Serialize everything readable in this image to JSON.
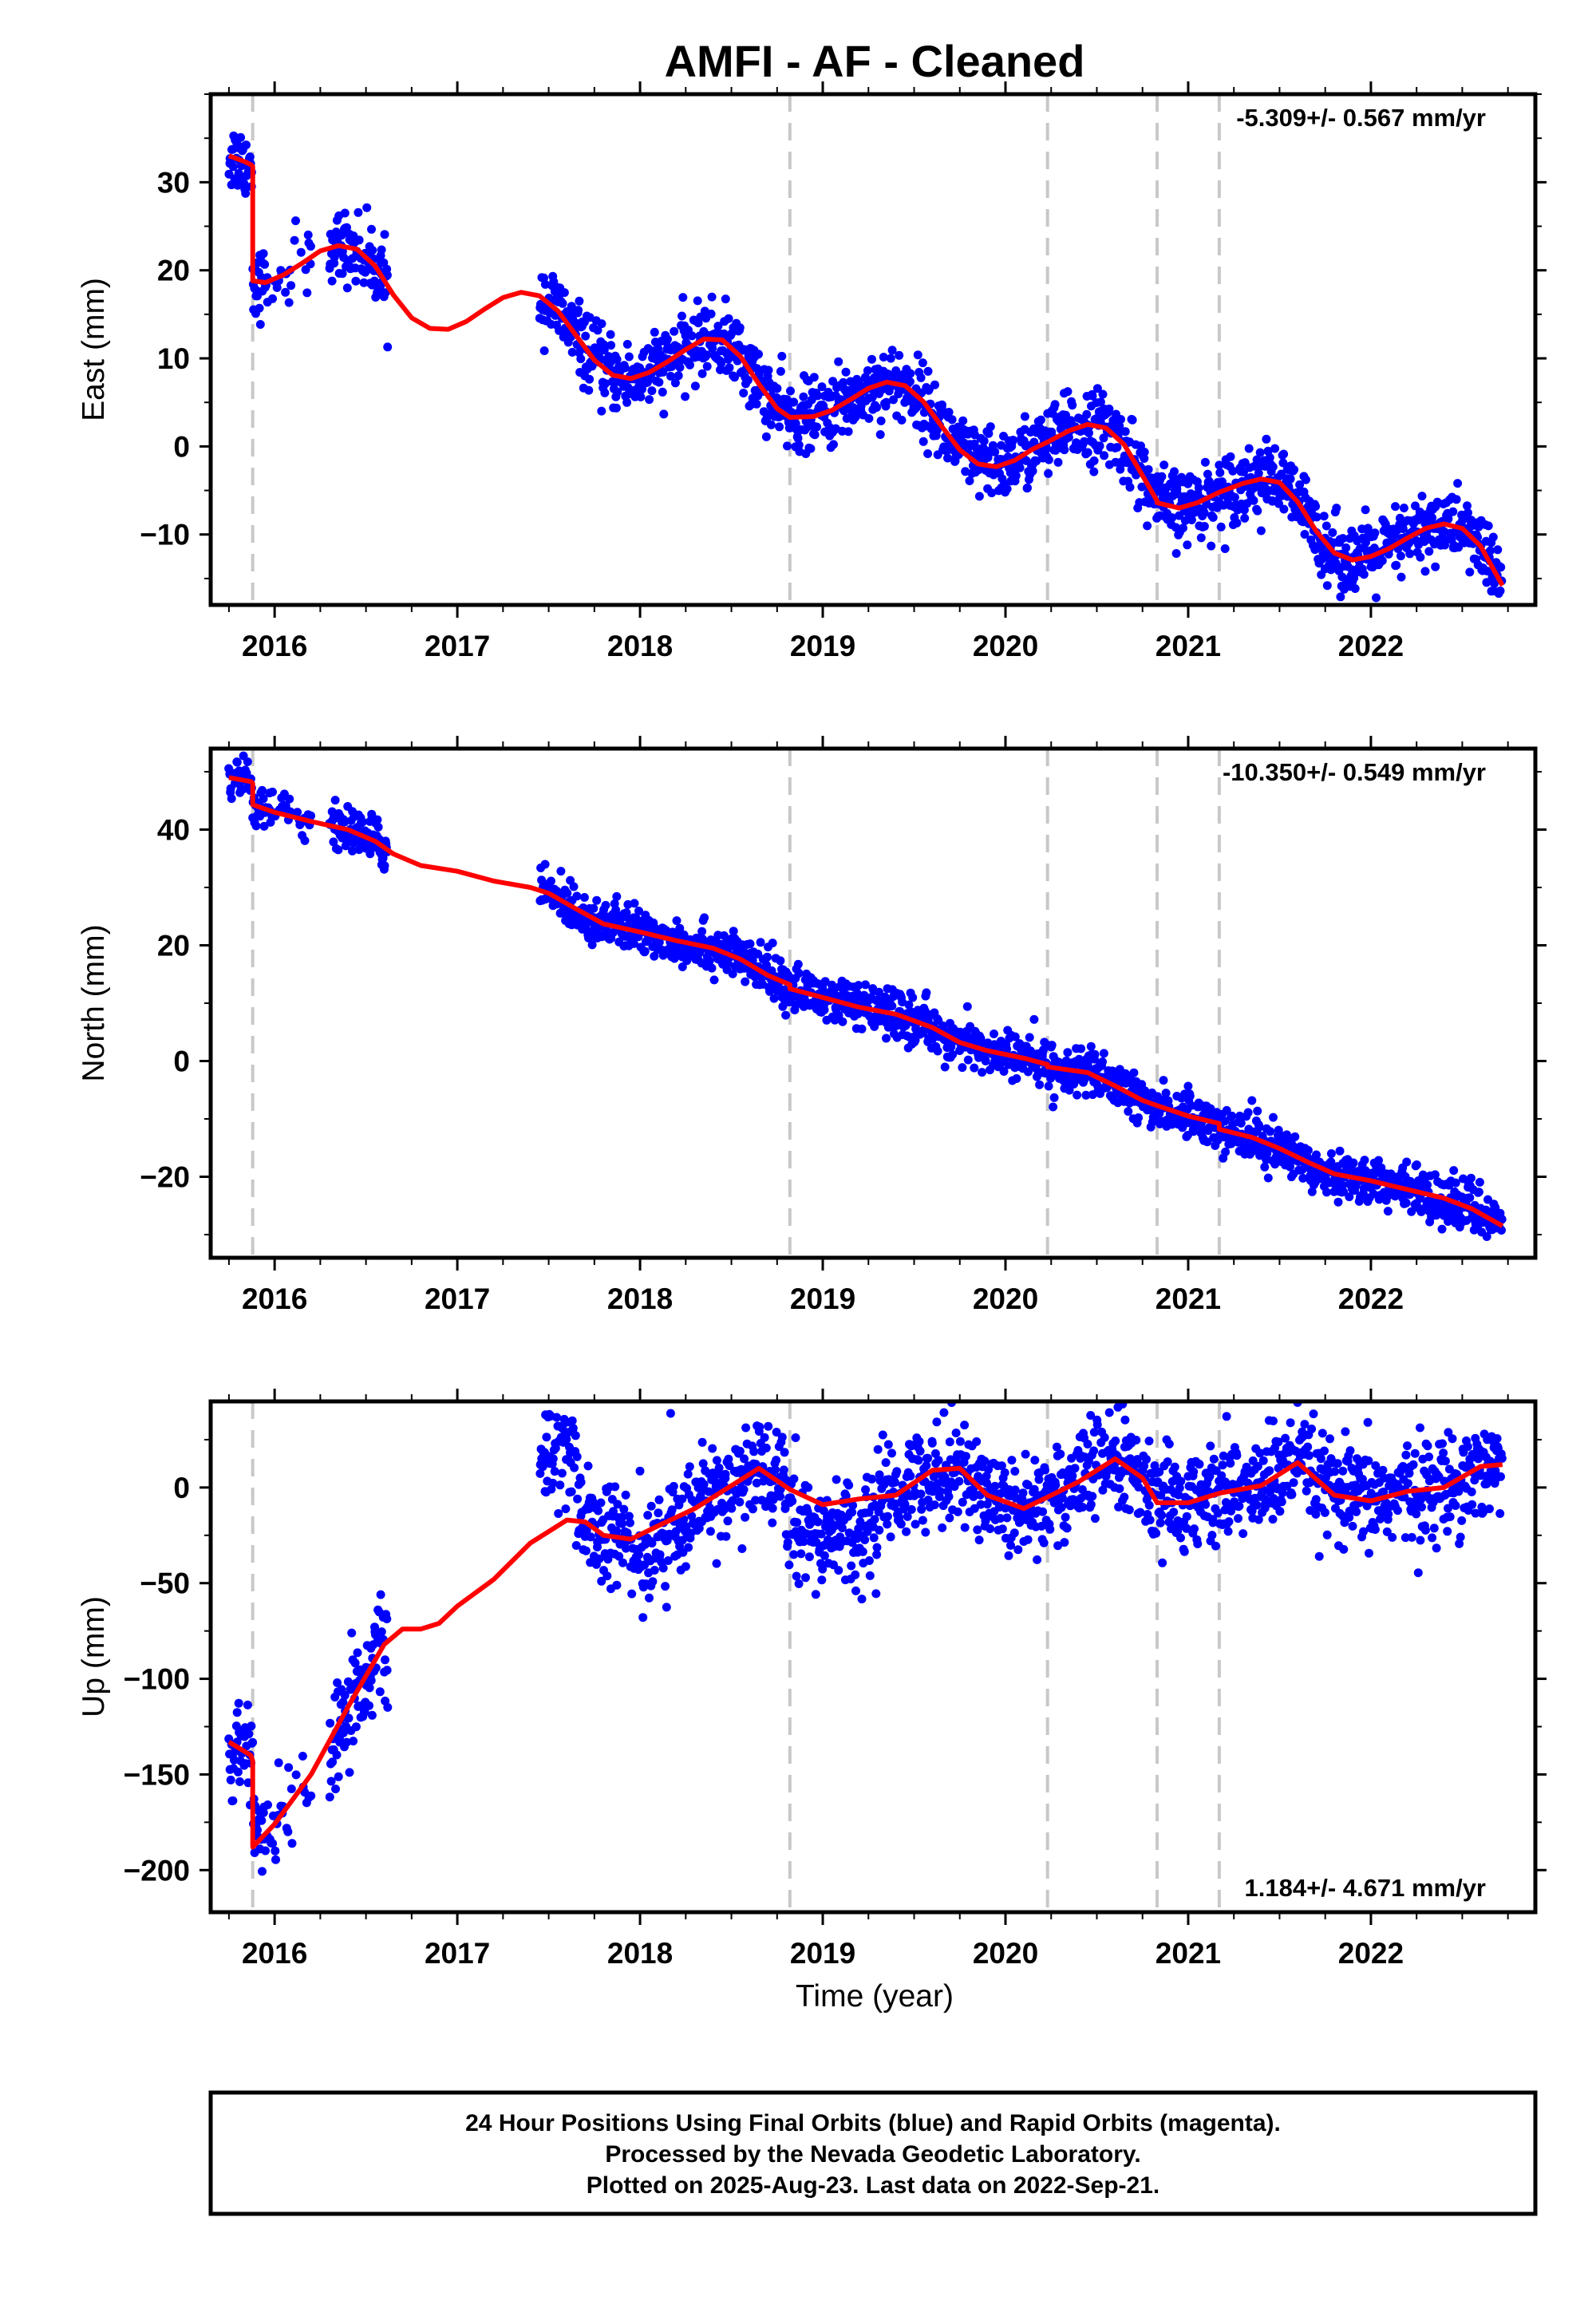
{
  "chart_data": {
    "type": "scatter",
    "title": "AMFI  - AF - Cleaned",
    "xlabel": "Time (year)",
    "x_tick_labels": [
      "2016",
      "2017",
      "2018",
      "2019",
      "2020",
      "2021",
      "2022"
    ],
    "x_ticks": [
      2016,
      2017,
      2018,
      2019,
      2020,
      2021,
      2022
    ],
    "xlim": [
      2015.65,
      2022.9
    ],
    "grid": false,
    "colors": {
      "points": "#0000ff",
      "model": "#ff0000",
      "breaks": "#c8c8c8",
      "frame": "#000000"
    },
    "equipment_breaks": [
      2015.88,
      2018.82,
      2020.23,
      2020.83,
      2021.17
    ],
    "panels": [
      {
        "id": "east",
        "ylabel": "East (mm)",
        "ylim": [
          -18,
          40
        ],
        "y_ticks": [
          30,
          20,
          10,
          0,
          -10
        ],
        "y_tick_labels": [
          "30",
          "20",
          "10",
          "0",
          "−10"
        ],
        "rate_label": "-5.309+/- 0.567 mm/yr",
        "rate_position": "top-right",
        "model": {
          "x": [
            2015.75,
            2015.79,
            2015.84,
            2015.87,
            2015.88,
            2015.88,
            2015.95,
            2016.05,
            2016.15,
            2016.25,
            2016.35,
            2016.45,
            2016.55,
            2016.65,
            2016.75,
            2016.85,
            2016.95,
            2017.05,
            2017.15,
            2017.25,
            2017.35,
            2017.45,
            2017.55,
            2017.65,
            2017.75,
            2017.85,
            2017.95,
            2018.05,
            2018.15,
            2018.25,
            2018.35,
            2018.45,
            2018.55,
            2018.65,
            2018.75,
            2018.82,
            2018.82,
            2018.95,
            2019.05,
            2019.15,
            2019.25,
            2019.35,
            2019.45,
            2019.55,
            2019.65,
            2019.75,
            2019.85,
            2019.95,
            2020.05,
            2020.15,
            2020.23,
            2020.23,
            2020.35,
            2020.45,
            2020.55,
            2020.65,
            2020.75,
            2020.83,
            2020.83,
            2020.95,
            2021.05,
            2021.17,
            2021.17,
            2021.3,
            2021.4,
            2021.5,
            2021.6,
            2021.7,
            2021.8,
            2021.9,
            2022.0,
            2022.1,
            2022.2,
            2022.3,
            2022.4,
            2022.5,
            2022.6,
            2022.72
          ],
          "y": [
            33,
            32.7,
            32.3,
            32,
            31.8,
            18.8,
            18.6,
            19.5,
            20.8,
            22.2,
            22.8,
            22.4,
            20.5,
            17.2,
            14.6,
            13.4,
            13.3,
            14.2,
            15.6,
            16.9,
            17.5,
            17.1,
            15.4,
            12.6,
            9.8,
            8.1,
            7.7,
            8.4,
            9.6,
            11,
            12.2,
            12.1,
            10.2,
            7.1,
            4.3,
            3.3,
            3.3,
            3.4,
            4.1,
            5.3,
            6.6,
            7.3,
            6.9,
            5.1,
            2.3,
            -0.4,
            -2,
            -2.3,
            -1.6,
            -0.3,
            0.5,
            0.5,
            1.8,
            2.5,
            2.1,
            0.2,
            -3.3,
            -6.2,
            -6.4,
            -7,
            -6.4,
            -5.2,
            -5.2,
            -4.2,
            -3.7,
            -4.1,
            -6.3,
            -9.6,
            -12.1,
            -12.9,
            -12.5,
            -11.6,
            -10.4,
            -9.3,
            -8.8,
            -9.3,
            -11.3,
            -15.8
          ]
        },
        "series_points_count": 2100
      },
      {
        "id": "north",
        "ylabel": "North (mm)",
        "ylim": [
          -34,
          54
        ],
        "y_ticks": [
          40,
          20,
          0,
          -20
        ],
        "y_tick_labels": [
          "40",
          "20",
          "0",
          "−20"
        ],
        "rate_label": "-10.350+/- 0.549 mm/yr",
        "rate_position": "top-right",
        "model": {
          "x": [
            2015.75,
            2015.87,
            2015.88,
            2015.88,
            2016.0,
            2016.2,
            2016.4,
            2016.55,
            2016.65,
            2016.8,
            2017.0,
            2017.2,
            2017.4,
            2017.5,
            2017.65,
            2017.8,
            2018.0,
            2018.2,
            2018.4,
            2018.55,
            2018.7,
            2018.82,
            2018.82,
            2019.0,
            2019.2,
            2019.4,
            2019.6,
            2019.75,
            2019.9,
            2020.1,
            2020.23,
            2020.23,
            2020.45,
            2020.6,
            2020.75,
            2020.83,
            2020.83,
            2021.0,
            2021.17,
            2021.17,
            2021.35,
            2021.5,
            2021.65,
            2021.8,
            2022.0,
            2022.2,
            2022.4,
            2022.55,
            2022.72
          ],
          "y": [
            49,
            48.3,
            48,
            44.3,
            43,
            41.4,
            40,
            38,
            35.8,
            33.8,
            32.8,
            31.1,
            30,
            29,
            26.3,
            23.7,
            22.3,
            20.8,
            19.5,
            17.6,
            14.8,
            13.2,
            12.5,
            11,
            9.3,
            8.1,
            5.8,
            3.2,
            1.8,
            0.5,
            -0.6,
            -1,
            -2,
            -4.3,
            -6.8,
            -7.7,
            -7.7,
            -9.5,
            -10.8,
            -11.8,
            -13.2,
            -15.1,
            -17.4,
            -19.5,
            -20.7,
            -22.2,
            -23.7,
            -25.5,
            -28.5
          ]
        },
        "series_points_count": 2100
      },
      {
        "id": "up",
        "ylabel": "Up (mm)",
        "ylim": [
          -222,
          45
        ],
        "y_ticks": [
          0,
          -50,
          -100,
          -150,
          -200
        ],
        "y_tick_labels": [
          "0",
          "−50",
          "−100",
          "−150",
          "−200"
        ],
        "rate_label": "1.184+/- 4.671 mm/yr",
        "rate_position": "bottom-right",
        "model": {
          "x": [
            2015.75,
            2015.87,
            2015.88,
            2015.88,
            2016.0,
            2016.2,
            2016.4,
            2016.6,
            2016.7,
            2016.8,
            2016.9,
            2017.0,
            2017.2,
            2017.4,
            2017.6,
            2017.7,
            2017.8,
            2017.95,
            2018.1,
            2018.3,
            2018.5,
            2018.65,
            2018.82,
            2019.0,
            2019.2,
            2019.4,
            2019.6,
            2019.75,
            2019.9,
            2020.1,
            2020.23,
            2020.4,
            2020.6,
            2020.75,
            2020.83,
            2021.0,
            2021.17,
            2021.4,
            2021.6,
            2021.8,
            2022.0,
            2022.2,
            2022.4,
            2022.6,
            2022.72
          ],
          "y": [
            -133,
            -140,
            -143,
            -188,
            -176,
            -150,
            -115,
            -82,
            -74,
            -74,
            -71,
            -62,
            -48,
            -29,
            -17,
            -18,
            -25,
            -27,
            -20,
            -11,
            1,
            10,
            -1,
            -9,
            -6,
            -4,
            9,
            10,
            -4,
            -11,
            -5,
            3,
            15,
            5,
            -8,
            -8,
            -3,
            1,
            13,
            -4,
            -7,
            -2,
            0,
            11,
            12
          ]
        },
        "series_points_count": 2100
      }
    ],
    "footer": {
      "line1": "24 Hour Positions Using Final Orbits (blue) and Rapid Orbits (magenta).",
      "line2": "Processed by the Nevada Geodetic Laboratory.",
      "line3": "Plotted on 2025-Aug-23. Last data on 2022-Sep-21."
    }
  }
}
